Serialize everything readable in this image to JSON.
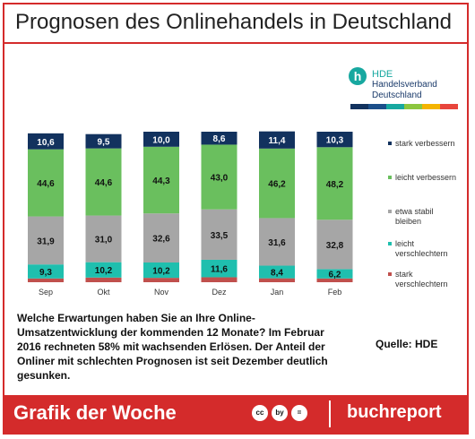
{
  "header": {
    "title": "Prognosen des Onlinehandels in Deutschland"
  },
  "logo": {
    "mark": "h",
    "line1": "HDE",
    "line2": "Handelsverband",
    "line3": "Deutschland"
  },
  "logo_stripe_colors": [
    "#12325e",
    "#1b4f8a",
    "#17a8a0",
    "#8cc63f",
    "#f4b400",
    "#e8453c"
  ],
  "chart_data": {
    "type": "bar",
    "stacked": true,
    "orientation": "vertical",
    "categories": [
      "Sep",
      "Okt",
      "Nov",
      "Dez",
      "Jan",
      "Feb"
    ],
    "series": [
      {
        "name": "stark verschlechtern",
        "color": "#c0504d",
        "values": [
          2.5,
          3.1,
          2.9,
          3.3,
          2.6,
          2.5
        ]
      },
      {
        "name": "leicht verschlechtern",
        "color": "#1fbfae",
        "values": [
          9.3,
          10.2,
          10.2,
          11.6,
          8.4,
          6.2
        ]
      },
      {
        "name": "etwa stabil bleiben",
        "color": "#a6a6a6",
        "values": [
          31.9,
          31.0,
          32.6,
          33.5,
          31.6,
          32.8
        ]
      },
      {
        "name": "leicht verbessern",
        "color": "#6abf5e",
        "values": [
          44.6,
          44.6,
          44.3,
          43.0,
          46.2,
          48.2
        ]
      },
      {
        "name": "stark verbessern",
        "color": "#12325e",
        "values": [
          10.6,
          9.5,
          10.0,
          8.6,
          11.4,
          10.3
        ]
      }
    ],
    "labels_shown_for": [
      "leicht verschlechtern",
      "etwa stabil bleiben",
      "leicht verbessern",
      "stark verbessern"
    ],
    "ylim": [
      0,
      100
    ],
    "legend_position": "right",
    "grid": false
  },
  "caption": "Welche Erwartungen haben Sie an Ihre Online-Umsatzentwicklung der kommenden 12 Monate? Im Februar 2016 rechneten 58% mit wachsenden Erlösen. Der Anteil der Onliner mit schlechten Prognosen ist seit Dezember deutlich gesunken.",
  "source": "Quelle: HDE",
  "footer": {
    "left": "Grafik der Woche",
    "right": "buchreport",
    "icons": [
      "cc",
      "by",
      "="
    ]
  }
}
